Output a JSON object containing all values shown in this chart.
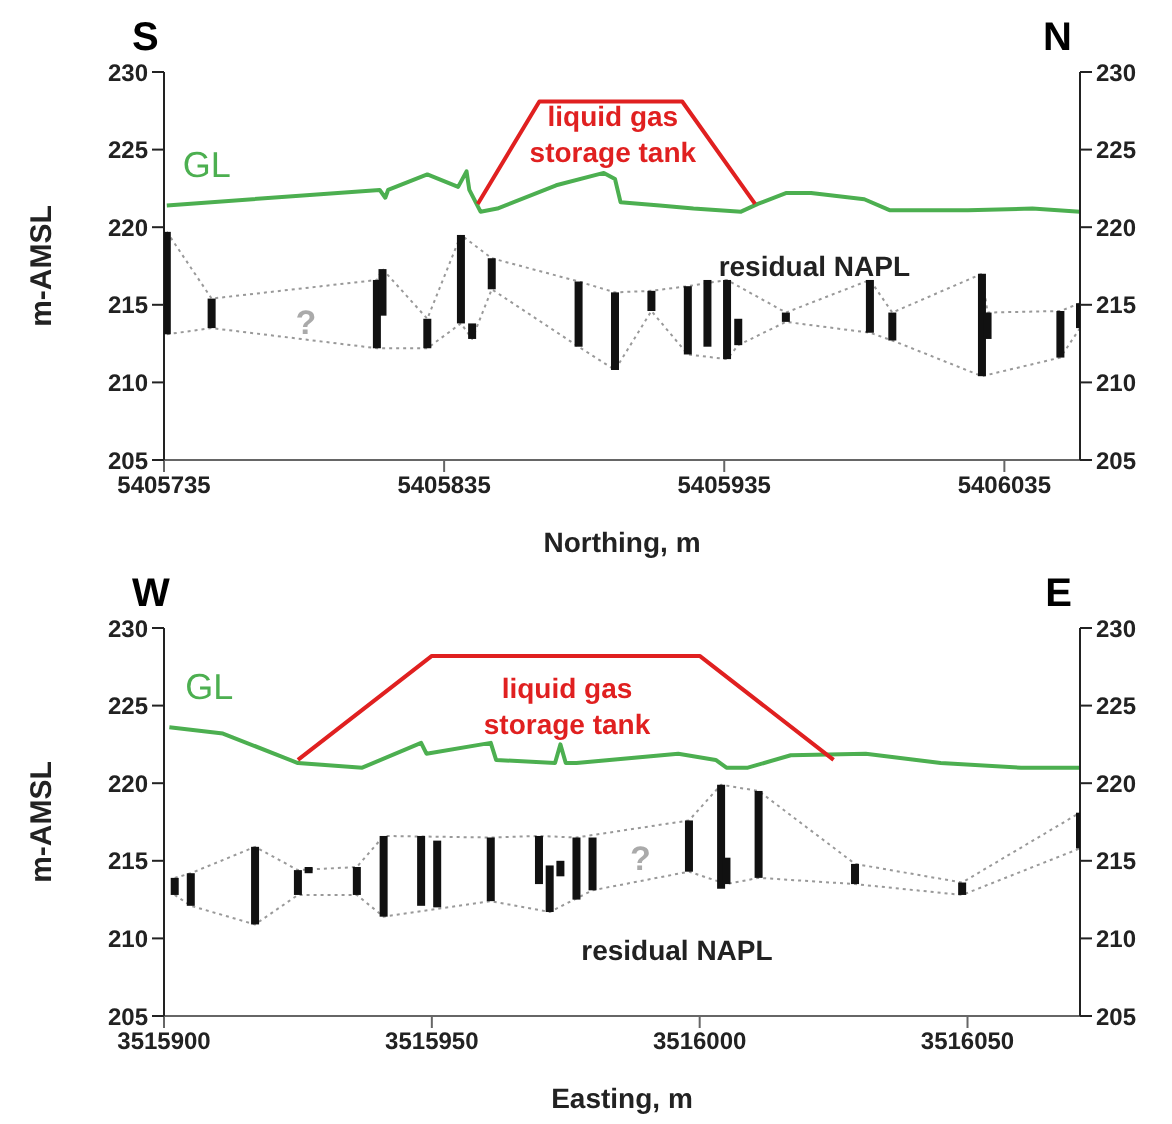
{
  "chart_data": [
    {
      "type": "line",
      "xlabel": "Northing, m",
      "ylabel": "m-AMSL",
      "xlim": [
        5405735,
        5406062
      ],
      "xticks": [
        5405735,
        5405835,
        5405935,
        5406035
      ],
      "ylim": [
        205,
        230
      ],
      "yticks": [
        205,
        210,
        215,
        220,
        225,
        230
      ],
      "y2lim": [
        205,
        230
      ],
      "y2ticks": [
        205,
        210,
        215,
        220,
        225,
        230
      ],
      "legend": false,
      "marker": "none",
      "grid": false,
      "annotations": [
        "S",
        "N",
        "liquid gas\nstorage tank",
        "?",
        "residual NAPL"
      ],
      "series": [
        {
          "type": "line",
          "name": "GL",
          "color": "#4caf50",
          "line_style": "solid",
          "x": [
            5405736,
            5405812,
            5405814,
            5405815,
            5405829,
            5405840,
            5405843,
            5405844,
            5405848,
            5405854,
            5405875,
            5405892,
            5405896,
            5405898,
            5405912,
            5405924,
            5405941,
            5405947,
            5405957,
            5405966,
            5405985,
            5405994,
            5406022,
            5406045,
            5406062
          ],
          "values": [
            221.4,
            222.4,
            221.9,
            222.4,
            223.4,
            222.6,
            223.6,
            222.4,
            221.0,
            221.2,
            222.7,
            223.5,
            223.1,
            221.6,
            221.4,
            221.2,
            221.0,
            221.5,
            222.2,
            222.2,
            221.8,
            221.1,
            221.1,
            221.2,
            221.0
          ]
        },
        {
          "type": "line",
          "color": "#e02020",
          "line_style": "solid",
          "x": [
            5405847,
            5405869,
            5405920,
            5405946
          ],
          "values": [
            221.5,
            228.1,
            228.1,
            221.5
          ]
        },
        {
          "type": "line",
          "color": "#999999",
          "line_style": "dotted",
          "x": [
            5405736,
            5405752,
            5405811,
            5405813,
            5405829,
            5405841,
            5405852,
            5405883,
            5405896,
            5405909,
            5405922,
            5405936,
            5405957,
            5405987,
            5405995,
            5406027,
            5406029,
            5406055,
            5406062
          ],
          "values": [
            219.7,
            215.4,
            216.6,
            217.3,
            214.1,
            219.5,
            218.0,
            216.5,
            215.8,
            215.9,
            216.2,
            216.6,
            214.5,
            216.6,
            214.5,
            217.0,
            214.5,
            214.6,
            215.1
          ]
        },
        {
          "type": "line",
          "color": "#999999",
          "line_style": "dotted",
          "x": [
            5405736,
            5405752,
            5405811,
            5405829,
            5405841,
            5405845,
            5405852,
            5405883,
            5405896,
            5405909,
            5405922,
            5405936,
            5405940,
            5405957,
            5405987,
            5405995,
            5406027,
            5406055,
            5406062
          ],
          "values": [
            213.1,
            213.5,
            212.2,
            212.2,
            213.8,
            212.8,
            216.0,
            212.3,
            210.8,
            214.6,
            211.8,
            211.5,
            212.4,
            213.9,
            213.2,
            212.7,
            210.4,
            211.6,
            213.5
          ]
        },
        {
          "type": "bar",
          "color": "#111111",
          "x": [
            5405736,
            5405752,
            5405811,
            5405813,
            5405829,
            5405841,
            5405845,
            5405852,
            5405883,
            5405896,
            5405909,
            5405922,
            5405929,
            5405936,
            5405940,
            5405957,
            5405987,
            5405995,
            5406027,
            5406029,
            5406055,
            5406062
          ],
          "base": [
            213.1,
            213.5,
            212.2,
            214.3,
            212.2,
            213.8,
            212.8,
            216.0,
            212.3,
            210.8,
            214.6,
            211.8,
            212.3,
            211.5,
            212.4,
            213.9,
            213.2,
            212.7,
            210.4,
            212.8,
            211.6,
            213.5
          ],
          "values": [
            6.6,
            1.9,
            4.4,
            3.0,
            1.9,
            5.7,
            1.0,
            2.0,
            4.2,
            5.0,
            1.3,
            4.4,
            4.3,
            5.1,
            1.7,
            0.6,
            3.4,
            1.8,
            6.6,
            1.7,
            3.0,
            1.6
          ]
        }
      ]
    },
    {
      "type": "line",
      "xlabel": "Easting, m",
      "ylabel": "m-AMSL",
      "xlim": [
        3515900,
        3516071
      ],
      "xticks": [
        3515900,
        3515950,
        3516000,
        3516050
      ],
      "ylim": [
        205,
        230
      ],
      "yticks": [
        205,
        210,
        215,
        220,
        225,
        230
      ],
      "y2lim": [
        205,
        230
      ],
      "y2ticks": [
        205,
        210,
        215,
        220,
        225,
        230
      ],
      "legend": false,
      "marker": "none",
      "grid": false,
      "annotations": [
        "W",
        "E",
        "liquid gas\nstorage tank",
        "?",
        "residual NAPL"
      ],
      "series": [
        {
          "type": "line",
          "name": "GL",
          "color": "#4caf50",
          "line_style": "solid",
          "x": [
            3515901,
            3515911,
            3515925,
            3515937,
            3515948,
            3515949,
            3515961,
            3515962,
            3515973,
            3515974,
            3515975,
            3515977,
            3515996,
            3516003,
            3516005,
            3516009,
            3516017,
            3516031,
            3516045,
            3516060,
            3516071
          ],
          "values": [
            223.6,
            223.2,
            221.3,
            221.0,
            222.6,
            221.9,
            222.6,
            221.5,
            221.3,
            222.5,
            221.3,
            221.3,
            221.9,
            221.5,
            221.0,
            221.0,
            221.8,
            221.9,
            221.3,
            221.0,
            221.0
          ]
        },
        {
          "type": "line",
          "color": "#e02020",
          "line_style": "solid",
          "x": [
            3515925,
            3515950,
            3516000,
            3516025
          ],
          "values": [
            221.5,
            228.2,
            228.2,
            221.5
          ]
        },
        {
          "type": "line",
          "color": "#999999",
          "line_style": "dotted",
          "x": [
            3515902,
            3515905,
            3515917,
            3515925,
            3515936,
            3515941,
            3515961,
            3515970,
            3515977,
            3515998,
            3516004,
            3516011,
            3516029,
            3516049,
            3516071
          ],
          "values": [
            213.9,
            214.2,
            215.9,
            214.4,
            214.6,
            216.6,
            216.5,
            216.6,
            216.5,
            217.6,
            219.9,
            219.5,
            214.8,
            213.6,
            218.1
          ]
        },
        {
          "type": "line",
          "color": "#999999",
          "line_style": "dotted",
          "x": [
            3515902,
            3515905,
            3515917,
            3515925,
            3515936,
            3515941,
            3515961,
            3515972,
            3515980,
            3515998,
            3516005,
            3516011,
            3516029,
            3516049,
            3516071
          ],
          "values": [
            212.8,
            212.1,
            210.9,
            212.8,
            212.8,
            211.4,
            212.4,
            211.7,
            213.1,
            214.3,
            213.5,
            213.9,
            213.5,
            212.8,
            215.8
          ]
        },
        {
          "type": "bar",
          "color": "#111111",
          "x": [
            3515902,
            3515905,
            3515917,
            3515925,
            3515927,
            3515936,
            3515941,
            3515948,
            3515951,
            3515961,
            3515970,
            3515972,
            3515974,
            3515977,
            3515980,
            3515998,
            3516004,
            3516005,
            3516011,
            3516029,
            3516049,
            3516071
          ],
          "base": [
            212.8,
            212.1,
            210.9,
            212.8,
            214.2,
            212.8,
            211.4,
            212.1,
            212.0,
            212.4,
            213.5,
            211.7,
            214.0,
            212.5,
            213.1,
            214.3,
            213.2,
            213.5,
            213.9,
            213.5,
            212.8,
            215.8
          ],
          "values": [
            1.1,
            2.1,
            5.0,
            1.6,
            0.4,
            1.8,
            5.2,
            4.5,
            4.3,
            4.1,
            3.1,
            3.0,
            1.0,
            4.0,
            3.4,
            3.3,
            6.7,
            1.7,
            5.6,
            1.3,
            0.8,
            2.3
          ]
        }
      ]
    }
  ]
}
